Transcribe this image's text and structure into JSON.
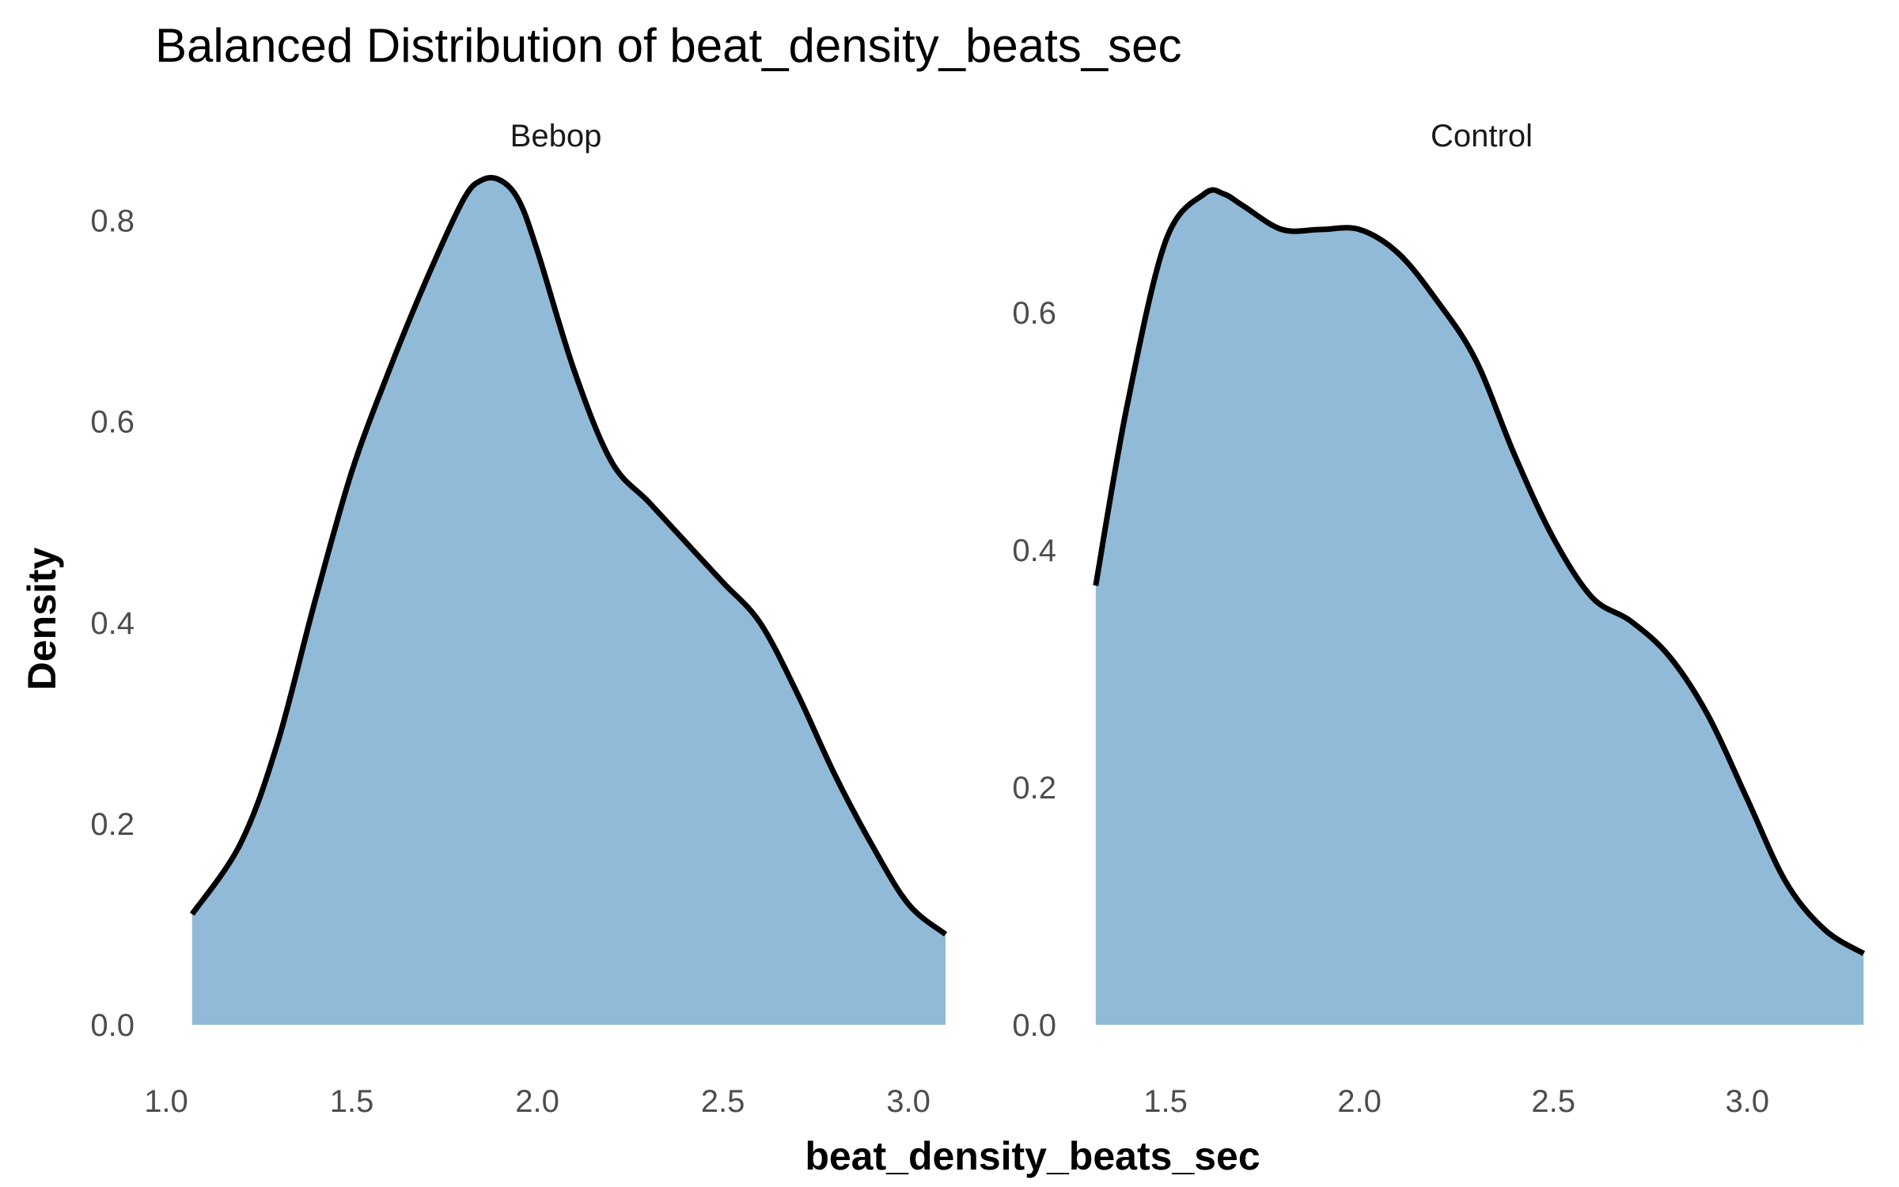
{
  "chart_data": {
    "type": "area",
    "title": "Balanced Distribution of beat_density_beats_sec",
    "xlabel": "beat_density_beats_sec",
    "ylabel": "Density",
    "grid": false,
    "legend": "none",
    "fill_color": "#90BAD8",
    "line_color": "#000000",
    "panels": [
      {
        "label": "Bebop",
        "xlim": [
          1.0,
          3.1
        ],
        "ylim": [
          0,
          0.85
        ],
        "xticks": [
          "1.0",
          "1.5",
          "2.0",
          "2.5",
          "3.0"
        ],
        "yticks": [
          "0.0",
          "0.2",
          "0.4",
          "0.6",
          "0.8"
        ],
        "x": [
          1.07,
          1.2,
          1.3,
          1.4,
          1.5,
          1.6,
          1.7,
          1.8,
          1.85,
          1.9,
          1.95,
          2.0,
          2.1,
          2.2,
          2.3,
          2.4,
          2.5,
          2.6,
          2.7,
          2.8,
          2.9,
          3.0,
          3.1
        ],
        "y": [
          0.11,
          0.18,
          0.28,
          0.42,
          0.55,
          0.65,
          0.74,
          0.82,
          0.84,
          0.84,
          0.82,
          0.77,
          0.65,
          0.56,
          0.52,
          0.48,
          0.44,
          0.4,
          0.33,
          0.25,
          0.18,
          0.12,
          0.09
        ]
      },
      {
        "label": "Control",
        "xlim": [
          1.3,
          3.33
        ],
        "ylim": [
          0,
          0.72
        ],
        "xticks": [
          "1.5",
          "2.0",
          "2.5",
          "3.0"
        ],
        "yticks": [
          "0.0",
          "0.2",
          "0.4",
          "0.6"
        ],
        "x": [
          1.32,
          1.4,
          1.5,
          1.6,
          1.65,
          1.7,
          1.8,
          1.9,
          2.0,
          2.1,
          2.2,
          2.3,
          2.4,
          2.5,
          2.6,
          2.7,
          2.8,
          2.9,
          3.0,
          3.1,
          3.2,
          3.3
        ],
        "y": [
          0.37,
          0.52,
          0.66,
          0.7,
          0.7,
          0.69,
          0.67,
          0.67,
          0.67,
          0.65,
          0.61,
          0.56,
          0.48,
          0.41,
          0.36,
          0.34,
          0.31,
          0.26,
          0.19,
          0.12,
          0.08,
          0.06
        ]
      }
    ]
  }
}
